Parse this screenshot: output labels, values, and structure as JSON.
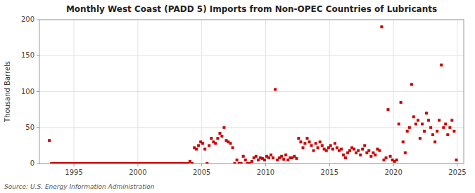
{
  "chart_data": {
    "type": "scatter",
    "title": "Monthly West Coast (PADD 5) Imports from Non-OPEC Countries of Lubricants",
    "ylabel": "Thousand Barrels",
    "annotation": "Source: U.S. Energy Information Administration",
    "color": "#cc0000",
    "marker": "square",
    "grid": true,
    "xlim": [
      1992.3,
      2025.5
    ],
    "ylim": [
      0,
      200
    ],
    "xticks": [
      1995,
      2000,
      2005,
      2010,
      2015,
      2020,
      2025
    ],
    "yticks": [
      0,
      50,
      100,
      150,
      200
    ],
    "x": [
      1993.08,
      1993.25,
      1993.42,
      1993.58,
      1993.75,
      1993.92,
      1994.08,
      1994.25,
      1994.42,
      1994.58,
      1994.75,
      1994.92,
      1995.08,
      1995.25,
      1995.42,
      1995.58,
      1995.75,
      1995.92,
      1996.08,
      1996.25,
      1996.42,
      1996.58,
      1996.75,
      1996.92,
      1997.08,
      1997.25,
      1997.42,
      1997.58,
      1997.75,
      1997.92,
      1998.08,
      1998.25,
      1998.42,
      1998.58,
      1998.75,
      1998.92,
      1999.08,
      1999.25,
      1999.42,
      1999.58,
      1999.75,
      1999.92,
      2000.08,
      2000.25,
      2000.42,
      2000.58,
      2000.75,
      2000.92,
      2001.08,
      2001.25,
      2001.42,
      2001.58,
      2001.75,
      2001.92,
      2002.08,
      2002.25,
      2002.42,
      2002.58,
      2002.75,
      2002.92,
      2003.08,
      2003.25,
      2003.42,
      2003.58,
      2003.75,
      2003.92,
      2004.08,
      2004.25,
      2004.42,
      2004.58,
      2004.75,
      2004.92,
      2005.08,
      2005.25,
      2005.42,
      2005.58,
      2005.75,
      2005.92,
      2006.08,
      2006.25,
      2006.42,
      2006.58,
      2006.75,
      2006.92,
      2007.08,
      2007.25,
      2007.42,
      2007.58,
      2007.75,
      2007.92,
      2008.08,
      2008.25,
      2008.42,
      2008.58,
      2008.75,
      2008.92,
      2009.08,
      2009.25,
      2009.42,
      2009.58,
      2009.75,
      2009.92,
      2010.08,
      2010.25,
      2010.42,
      2010.58,
      2010.75,
      2010.92,
      2011.08,
      2011.25,
      2011.42,
      2011.58,
      2011.75,
      2011.92,
      2012.08,
      2012.25,
      2012.42,
      2012.58,
      2012.75,
      2012.92,
      2013.08,
      2013.25,
      2013.42,
      2013.58,
      2013.75,
      2013.92,
      2014.08,
      2014.25,
      2014.42,
      2014.58,
      2014.75,
      2014.92,
      2015.08,
      2015.25,
      2015.42,
      2015.58,
      2015.75,
      2015.92,
      2016.08,
      2016.25,
      2016.42,
      2016.58,
      2016.75,
      2016.92,
      2017.08,
      2017.25,
      2017.42,
      2017.58,
      2017.75,
      2017.92,
      2018.08,
      2018.25,
      2018.42,
      2018.58,
      2018.75,
      2018.92,
      2019.08,
      2019.25,
      2019.42,
      2019.58,
      2019.75,
      2019.92,
      2020.08,
      2020.25,
      2020.42,
      2020.58,
      2020.75,
      2020.92,
      2021.08,
      2021.25,
      2021.42,
      2021.58,
      2021.75,
      2021.92,
      2022.08,
      2022.25,
      2022.42,
      2022.58,
      2022.75,
      2022.92,
      2023.08,
      2023.25,
      2023.42,
      2023.58,
      2023.75,
      2023.92,
      2024.08,
      2024.25,
      2024.42,
      2024.58,
      2024.75,
      2024.92
    ],
    "values": [
      32,
      0,
      0,
      0,
      0,
      0,
      0,
      0,
      0,
      0,
      0,
      0,
      0,
      0,
      0,
      0,
      0,
      0,
      0,
      0,
      0,
      0,
      0,
      0,
      0,
      0,
      0,
      0,
      0,
      0,
      0,
      0,
      0,
      0,
      0,
      0,
      0,
      0,
      0,
      0,
      0,
      0,
      0,
      0,
      0,
      0,
      0,
      0,
      0,
      0,
      0,
      0,
      0,
      0,
      0,
      0,
      0,
      0,
      0,
      0,
      0,
      0,
      0,
      0,
      0,
      0,
      3,
      0,
      22,
      20,
      25,
      30,
      28,
      20,
      0,
      25,
      35,
      30,
      28,
      35,
      42,
      38,
      50,
      32,
      30,
      28,
      22,
      0,
      5,
      0,
      0,
      10,
      5,
      0,
      0,
      3,
      8,
      10,
      5,
      8,
      7,
      5,
      10,
      8,
      12,
      8,
      103,
      5,
      8,
      10,
      6,
      12,
      5,
      8,
      8,
      10,
      7,
      35,
      30,
      22,
      28,
      35,
      30,
      25,
      18,
      28,
      22,
      30,
      25,
      20,
      18,
      22,
      25,
      20,
      28,
      22,
      18,
      20,
      12,
      8,
      15,
      18,
      22,
      20,
      15,
      18,
      12,
      20,
      25,
      15,
      18,
      10,
      15,
      12,
      20,
      18,
      190,
      5,
      8,
      75,
      10,
      5,
      3,
      5,
      55,
      85,
      30,
      15,
      45,
      50,
      110,
      65,
      55,
      60,
      35,
      55,
      45,
      70,
      60,
      50,
      40,
      30,
      45,
      60,
      137,
      50,
      55,
      40,
      50,
      60,
      45,
      5
    ]
  }
}
